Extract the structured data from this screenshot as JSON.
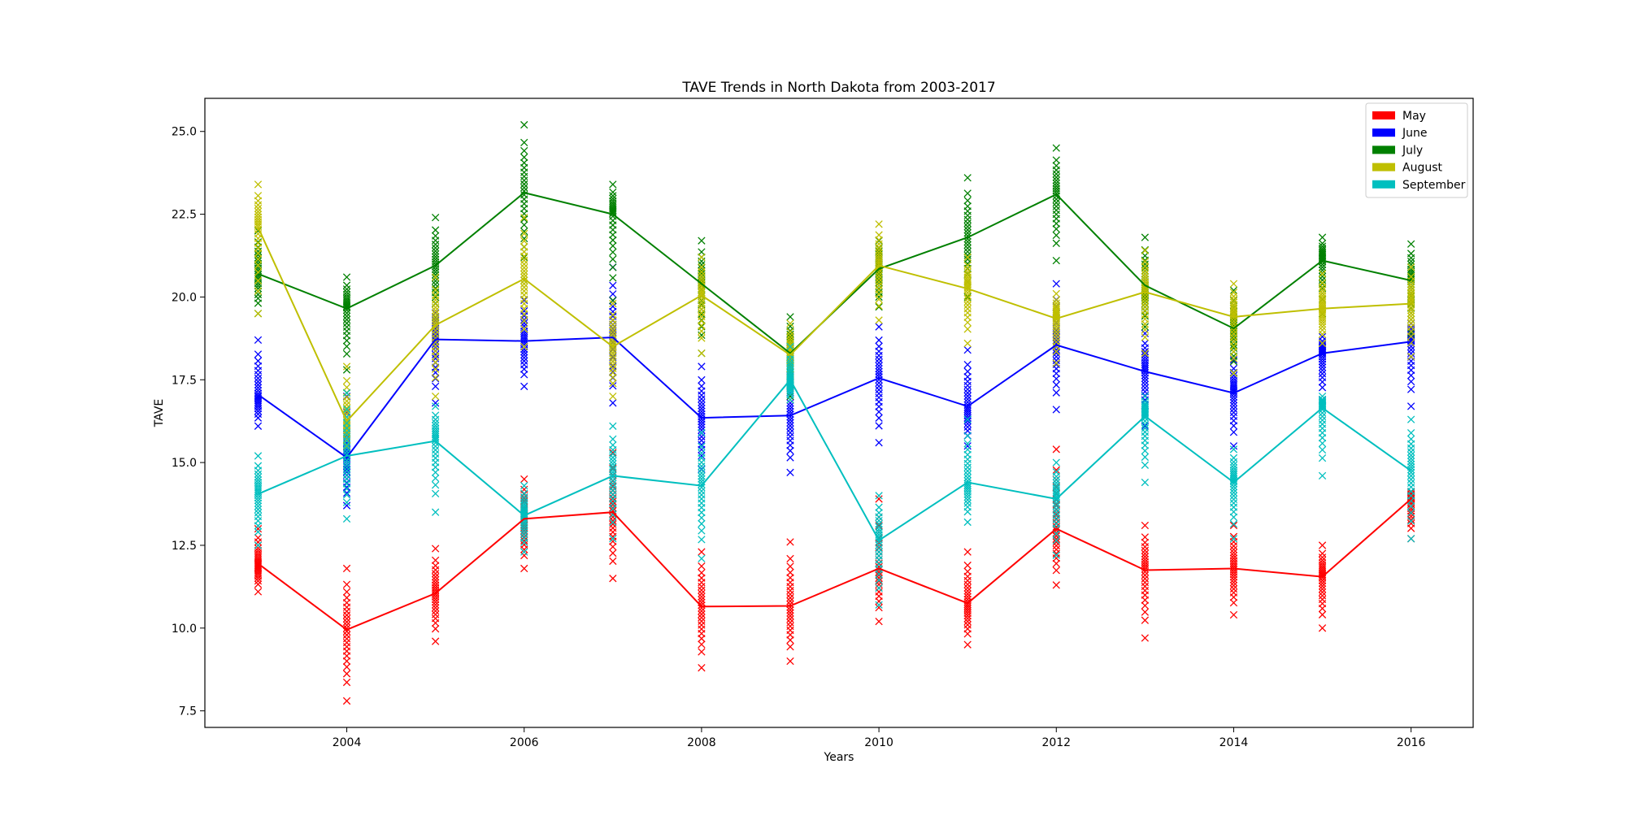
{
  "chart_data": {
    "type": "line",
    "title": "TAVE Trends in North Dakota from 2003-2017",
    "xlabel": "Years",
    "ylabel": "TAVE",
    "xlim": [
      2002.4,
      2016.7
    ],
    "ylim": [
      7.0,
      26.0
    ],
    "x_ticks": [
      2004,
      2006,
      2008,
      2010,
      2012,
      2014,
      2016
    ],
    "x_tick_labels": [
      "2004",
      "2006",
      "2008",
      "2010",
      "2012",
      "2014",
      "2016"
    ],
    "y_ticks": [
      7.5,
      10.0,
      12.5,
      15.0,
      17.5,
      20.0,
      22.5,
      25.0
    ],
    "y_tick_labels": [
      "7.5",
      "10.0",
      "12.5",
      "15.0",
      "17.5",
      "20.0",
      "22.5",
      "25.0"
    ],
    "grid": false,
    "legend_position": "top-right",
    "x": [
      2003,
      2004,
      2005,
      2006,
      2007,
      2008,
      2009,
      2010,
      2011,
      2012,
      2013,
      2014,
      2015,
      2016
    ],
    "series": [
      {
        "name": "May",
        "color": "#ff0000",
        "values": [
          11.95,
          9.95,
          11.05,
          13.3,
          13.5,
          10.65,
          10.67,
          11.8,
          10.75,
          13.0,
          11.75,
          11.8,
          11.55,
          13.9
        ],
        "scatter_min": [
          11.1,
          7.8,
          9.6,
          11.8,
          11.5,
          8.8,
          9.0,
          10.2,
          9.5,
          11.3,
          9.7,
          10.4,
          10.0,
          12.7
        ],
        "scatter_max": [
          13.0,
          11.8,
          12.4,
          14.5,
          15.3,
          12.3,
          12.6,
          13.9,
          12.3,
          15.4,
          13.1,
          13.1,
          12.5,
          14.1
        ]
      },
      {
        "name": "June",
        "color": "#0000ff",
        "values": [
          17.05,
          15.15,
          18.72,
          18.67,
          18.78,
          16.35,
          16.42,
          17.55,
          16.7,
          18.55,
          17.75,
          17.1,
          18.3,
          18.65
        ],
        "scatter_min": [
          16.1,
          13.7,
          16.8,
          17.3,
          16.8,
          14.8,
          14.7,
          15.6,
          15.5,
          16.6,
          16.1,
          15.5,
          16.9,
          16.7
        ],
        "scatter_max": [
          18.7,
          17.0,
          19.8,
          19.9,
          20.9,
          17.9,
          18.0,
          19.1,
          18.4,
          20.4,
          18.9,
          18.1,
          18.8,
          19.2
        ]
      },
      {
        "name": "July",
        "color": "#008000",
        "values": [
          20.7,
          19.65,
          20.95,
          23.15,
          22.5,
          20.4,
          18.3,
          20.85,
          21.8,
          23.1,
          20.35,
          19.05,
          21.1,
          20.5
        ],
        "scatter_min": [
          19.5,
          17.8,
          19.4,
          20.5,
          19.9,
          18.3,
          17.0,
          19.7,
          20.0,
          21.1,
          19.1,
          17.7,
          19.5,
          18.9
        ],
        "scatter_max": [
          22.0,
          20.6,
          22.4,
          25.2,
          23.4,
          21.7,
          19.4,
          21.7,
          23.6,
          24.5,
          21.8,
          20.2,
          21.8,
          21.6
        ]
      },
      {
        "name": "August",
        "color": "#bfbf00",
        "values": [
          22.1,
          16.25,
          19.15,
          20.55,
          18.5,
          20.05,
          18.25,
          20.95,
          20.25,
          19.35,
          20.15,
          19.4,
          19.65,
          19.8
        ],
        "scatter_min": [
          19.5,
          15.5,
          17.0,
          18.5,
          17.0,
          18.3,
          16.9,
          19.3,
          18.6,
          18.0,
          18.3,
          17.7,
          18.6,
          18.2
        ],
        "scatter_max": [
          23.4,
          17.9,
          20.6,
          22.4,
          19.8,
          21.2,
          19.2,
          22.2,
          21.2,
          20.1,
          21.4,
          20.4,
          20.7,
          20.9
        ]
      },
      {
        "name": "September",
        "color": "#00bfbf",
        "values": [
          14.05,
          15.2,
          15.65,
          13.4,
          14.6,
          14.3,
          17.5,
          12.65,
          14.4,
          13.9,
          16.4,
          14.4,
          16.65,
          14.75
        ],
        "scatter_min": [
          12.5,
          13.3,
          13.5,
          12.3,
          12.7,
          12.1,
          16.9,
          10.7,
          13.2,
          12.2,
          14.4,
          12.7,
          14.6,
          12.7
        ],
        "scatter_max": [
          15.2,
          17.1,
          16.7,
          14.3,
          16.1,
          15.9,
          18.5,
          14.0,
          16.3,
          15.0,
          17.0,
          15.4,
          17.0,
          16.3
        ]
      }
    ]
  }
}
